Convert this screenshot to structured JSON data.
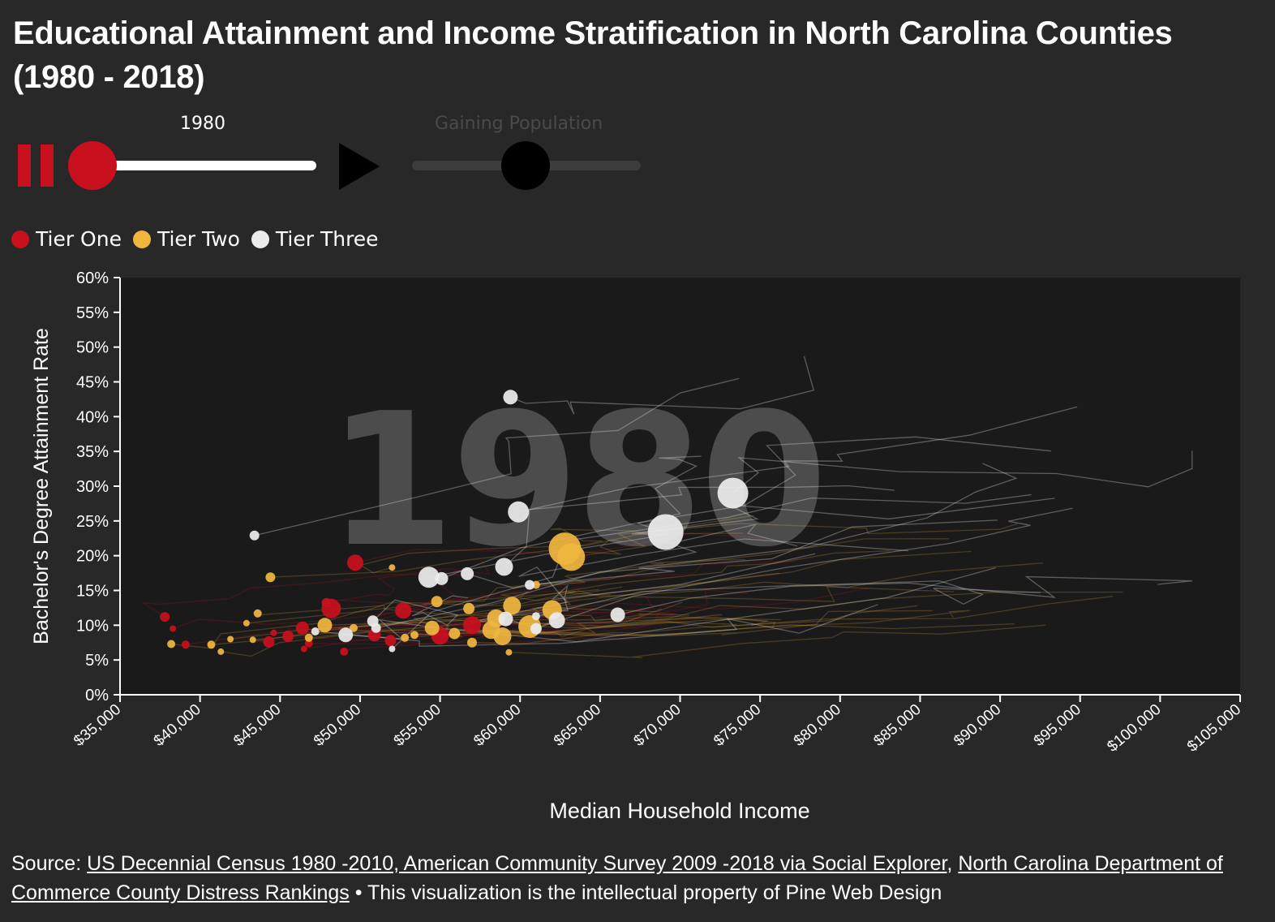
{
  "title": "Educational Attainment and Income Stratification in North Carolina Counties (1980 - 2018)",
  "controls": {
    "year": "1980",
    "toggle_label": "Gaining Population"
  },
  "colors": {
    "tier_one": "#c8101e",
    "tier_two": "#f0b73f",
    "tier_three": "#ececec",
    "background": "#282828",
    "plot_bg": "#1a1a1a"
  },
  "source": {
    "prefix": "Source:",
    "link1": "US Decennial Census 1980 -2010, American Community Survey 2009 -2018 via Social Explorer",
    "sep": ",",
    "link2": "North Carolina Department of Commerce County Distress Rankings",
    "suffix": "• This visualization is the intellectual property of Pine Web Design"
  },
  "chart_data": {
    "type": "scatter",
    "title": "",
    "watermark": "1980",
    "xlabel": "Median Household Income",
    "ylabel": "Bachelor's Degree Attainment Rate",
    "xlim": [
      35000,
      105000
    ],
    "ylim": [
      0,
      60
    ],
    "x_ticks": [
      "$35,000",
      "$40,000",
      "$45,000",
      "$50,000",
      "$55,000",
      "$60,000",
      "$65,000",
      "$70,000",
      "$75,000",
      "$80,000",
      "$85,000",
      "$90,000",
      "$95,000",
      "$100,000",
      "$105,000"
    ],
    "y_ticks": [
      "0%",
      "5%",
      "10%",
      "15%",
      "20%",
      "25%",
      "30%",
      "35%",
      "40%",
      "45%",
      "50%",
      "55%",
      "60%"
    ],
    "legend": [
      "Tier One",
      "Tier Two",
      "Tier Three"
    ],
    "legend_position": "top-left",
    "grid": false,
    "series": [
      {
        "name": "Tier One",
        "points": [
          [
            37800,
            11.2,
            6
          ],
          [
            38300,
            9.5,
            4
          ],
          [
            39100,
            7.2,
            5
          ],
          [
            44300,
            7.6,
            7
          ],
          [
            44600,
            8.9,
            4
          ],
          [
            45500,
            8.4,
            7
          ],
          [
            46400,
            9.6,
            8
          ],
          [
            46500,
            6.6,
            4
          ],
          [
            46800,
            7.4,
            5
          ],
          [
            47900,
            13.2,
            6
          ],
          [
            48200,
            12.4,
            12
          ],
          [
            49000,
            6.2,
            5
          ],
          [
            49700,
            19.0,
            10
          ],
          [
            50900,
            8.6,
            8
          ],
          [
            51900,
            7.8,
            7
          ],
          [
            52700,
            12.1,
            10
          ],
          [
            55000,
            8.5,
            11
          ],
          [
            57000,
            10.0,
            11
          ]
        ]
      },
      {
        "name": "Tier Two",
        "points": [
          [
            38200,
            7.3,
            5
          ],
          [
            40700,
            7.2,
            5
          ],
          [
            41300,
            6.2,
            4
          ],
          [
            41900,
            8.0,
            4
          ],
          [
            42900,
            10.3,
            4
          ],
          [
            43600,
            11.7,
            5
          ],
          [
            44400,
            16.9,
            6
          ],
          [
            46800,
            8.2,
            5
          ],
          [
            47800,
            10.0,
            9
          ],
          [
            49600,
            9.6,
            5
          ],
          [
            52000,
            18.3,
            4
          ],
          [
            52800,
            8.2,
            5
          ],
          [
            53400,
            8.6,
            5
          ],
          [
            54500,
            9.6,
            9
          ],
          [
            54800,
            13.4,
            7
          ],
          [
            55900,
            8.8,
            7
          ],
          [
            56800,
            12.4,
            7
          ],
          [
            57000,
            7.5,
            6
          ],
          [
            58200,
            9.3,
            11
          ],
          [
            58500,
            11.0,
            11
          ],
          [
            58900,
            8.4,
            11
          ],
          [
            59300,
            6.1,
            4
          ],
          [
            59500,
            12.8,
            11
          ],
          [
            60600,
            9.8,
            14
          ],
          [
            61000,
            15.8,
            5
          ],
          [
            62000,
            12.2,
            12
          ],
          [
            62800,
            21.0,
            20
          ],
          [
            63200,
            19.8,
            17
          ],
          [
            43300,
            7.9,
            4
          ]
        ]
      },
      {
        "name": "Tier Three",
        "points": [
          [
            43400,
            22.9,
            6
          ],
          [
            47200,
            9.1,
            5
          ],
          [
            49100,
            8.6,
            9
          ],
          [
            50800,
            10.6,
            7
          ],
          [
            51000,
            9.6,
            6
          ],
          [
            52000,
            6.6,
            4
          ],
          [
            54300,
            16.9,
            13
          ],
          [
            55100,
            16.7,
            8
          ],
          [
            56700,
            17.4,
            8
          ],
          [
            59000,
            18.4,
            11
          ],
          [
            59100,
            10.9,
            9
          ],
          [
            59400,
            42.8,
            9
          ],
          [
            59900,
            26.3,
            13
          ],
          [
            60600,
            15.8,
            6
          ],
          [
            61000,
            9.5,
            7
          ],
          [
            61000,
            11.3,
            5
          ],
          [
            62300,
            10.7,
            10
          ],
          [
            66100,
            11.5,
            9
          ],
          [
            69100,
            23.4,
            22
          ],
          [
            73300,
            29.0,
            19
          ]
        ]
      }
    ]
  }
}
